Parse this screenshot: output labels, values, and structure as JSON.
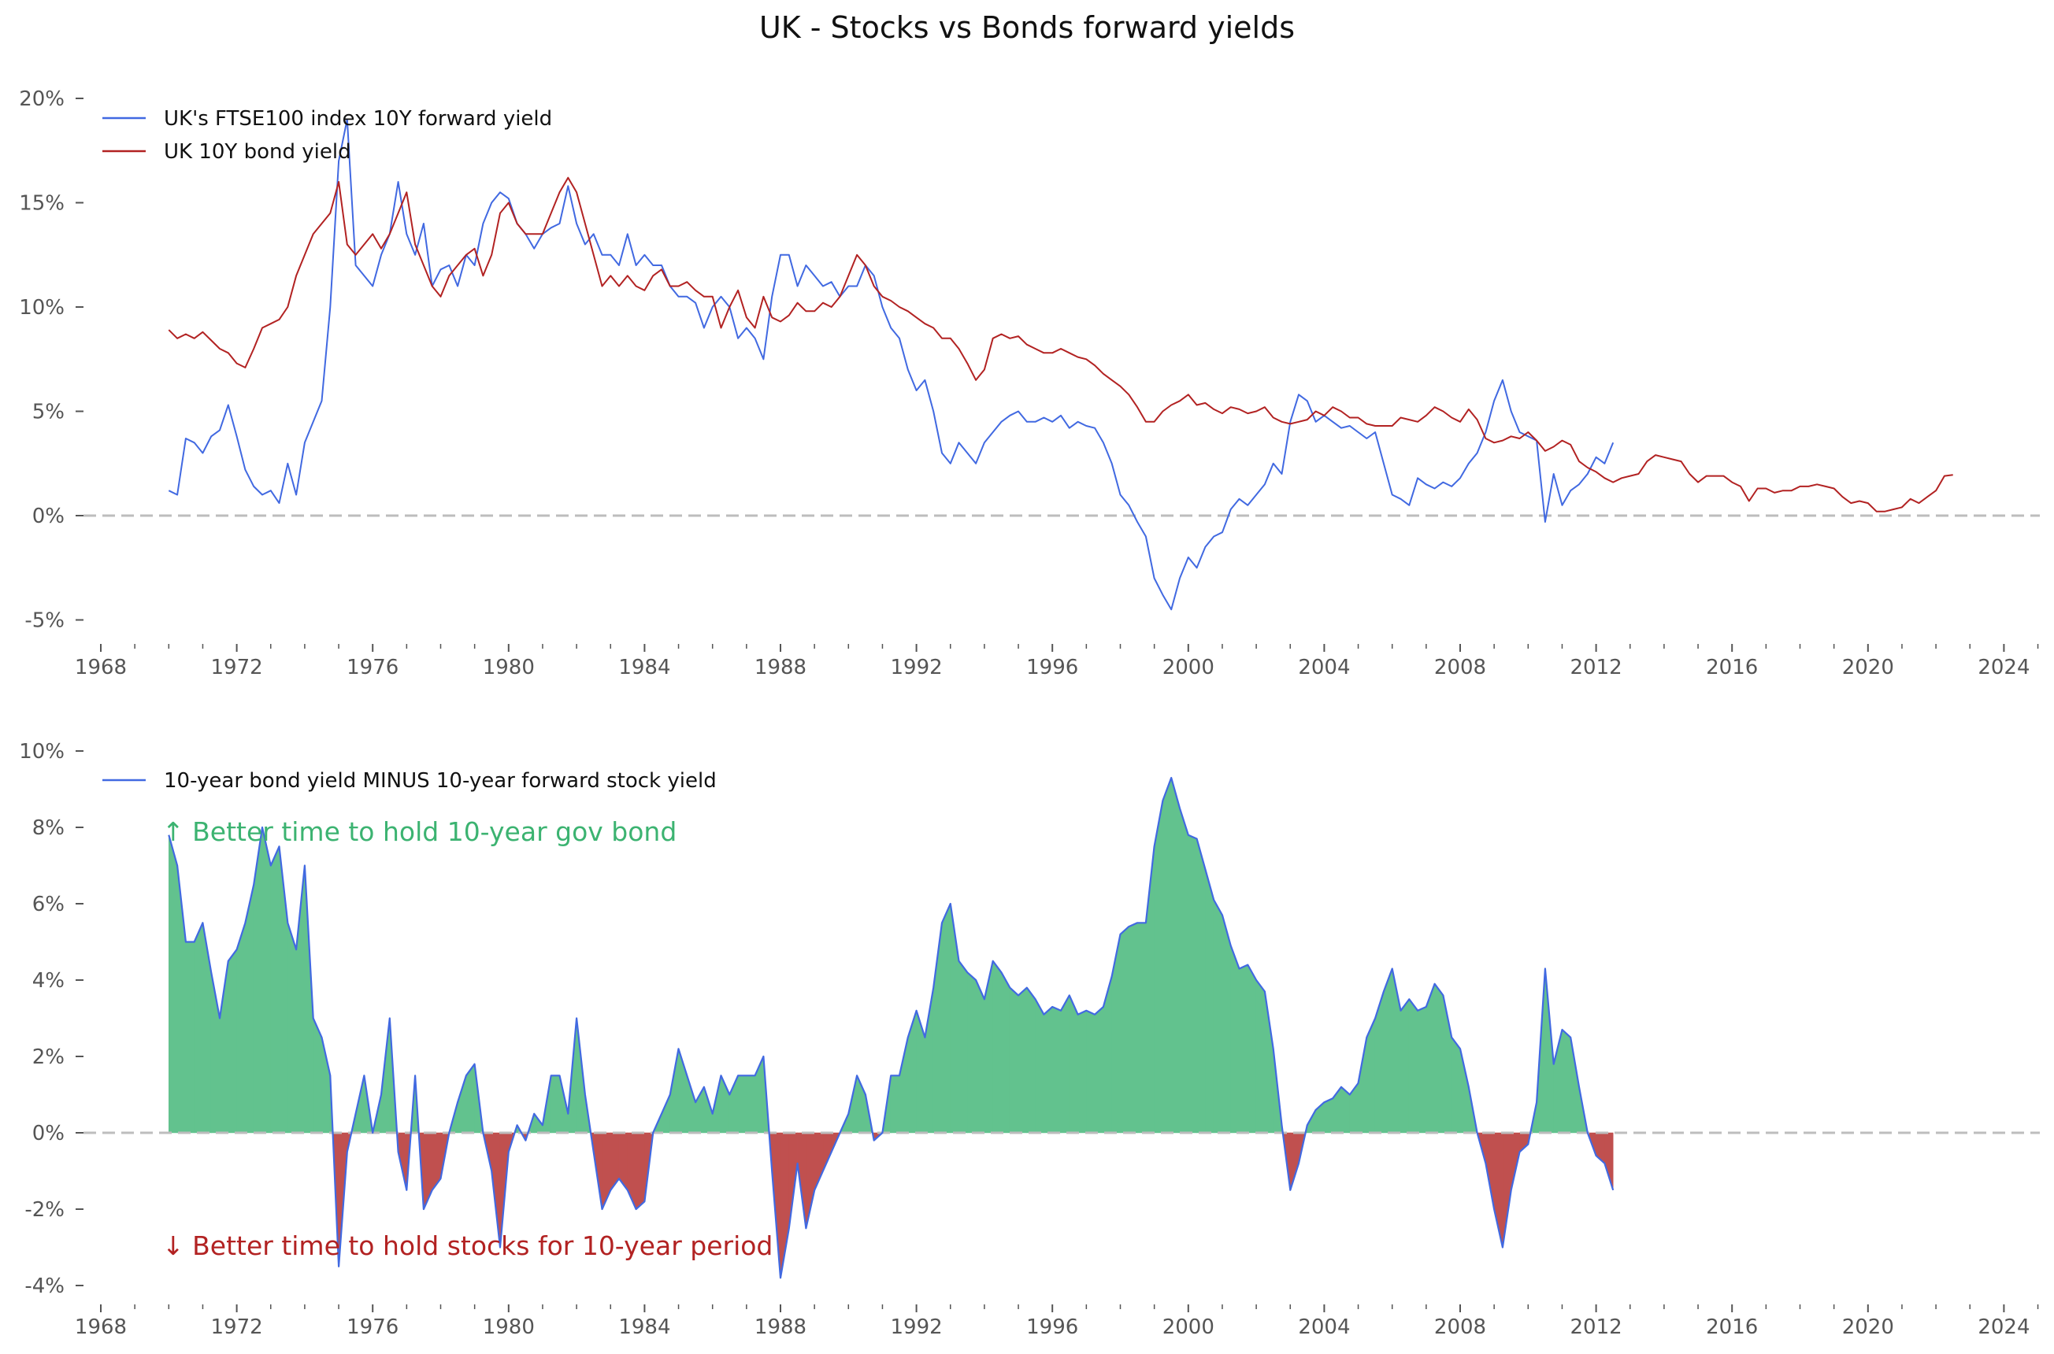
{
  "figure": {
    "title": "UK - Stocks vs Bonds forward yields"
  },
  "colors": {
    "stock_line": "#4169e1",
    "bond_line": "#b22222",
    "positive_fill": "#62c28e",
    "negative_fill": "#c0504f",
    "zero_line": "#bdbdbd",
    "annot_up": "#3cb371",
    "annot_down": "#b22222",
    "tick_text": "#555555"
  },
  "chart_data": [
    {
      "type": "line",
      "title": "UK - Stocks vs Bonds forward yields",
      "xlabel": "",
      "ylabel": "",
      "xlim": [
        1968,
        2025
      ],
      "ylim": [
        -6,
        20
      ],
      "x_ticks": [
        "1968",
        "1972",
        "1976",
        "1980",
        "1984",
        "1988",
        "1992",
        "1996",
        "2000",
        "2004",
        "2008",
        "2012",
        "2016",
        "2020",
        "2024"
      ],
      "x_minor_ticks": "yearly",
      "y_ticks": [
        20,
        15,
        10,
        5,
        0,
        -5
      ],
      "y_tick_labels": [
        "20%",
        "15%",
        "10%",
        "5%",
        "0%",
        "-5%"
      ],
      "grid": false,
      "reference_line": {
        "y": 0,
        "style": "dashed"
      },
      "legend": {
        "placement": "top-left",
        "entries": [
          "UK's FTSE100 index 10Y forward yield",
          "UK 10Y bond yield"
        ]
      },
      "series": [
        {
          "name": "UK's FTSE100 index 10Y forward yield",
          "color_key": "stock_line",
          "x_start": 1970.0,
          "x_step": 0.25,
          "values": [
            1.2,
            1.0,
            3.7,
            3.5,
            3.0,
            3.8,
            4.1,
            5.3,
            3.8,
            2.2,
            1.4,
            1.0,
            1.2,
            0.6,
            2.5,
            1.0,
            3.5,
            4.5,
            5.5,
            10.0,
            17.0,
            19.0,
            12.0,
            11.5,
            11.0,
            12.5,
            13.5,
            16.0,
            13.5,
            12.5,
            14.0,
            11.0,
            11.8,
            12.0,
            11.0,
            12.5,
            12.0,
            14.0,
            15.0,
            15.5,
            15.2,
            14.0,
            13.5,
            12.8,
            13.5,
            13.8,
            14.0,
            15.8,
            14.0,
            13.0,
            13.5,
            12.5,
            12.5,
            12.0,
            13.5,
            12.0,
            12.5,
            12.0,
            12.0,
            11.0,
            10.5,
            10.5,
            10.2,
            9.0,
            10.0,
            10.5,
            10.0,
            8.5,
            9.0,
            8.5,
            7.5,
            10.5,
            12.5,
            12.5,
            11.0,
            12.0,
            11.5,
            11.0,
            11.2,
            10.5,
            11.0,
            11.0,
            12.0,
            11.5,
            10.0,
            9.0,
            8.5,
            7.0,
            6.0,
            6.5,
            5.0,
            3.0,
            2.5,
            3.5,
            3.0,
            2.5,
            3.5,
            4.0,
            4.5,
            4.8,
            5.0,
            4.5,
            4.5,
            4.7,
            4.5,
            4.8,
            4.2,
            4.5,
            4.3,
            4.2,
            3.5,
            2.5,
            1.0,
            0.5,
            -0.3,
            -1.0,
            -3.0,
            -3.8,
            -4.5,
            -3.0,
            -2.0,
            -2.5,
            -1.5,
            -1.0,
            -0.8,
            0.3,
            0.8,
            0.5,
            1.0,
            1.5,
            2.5,
            2.0,
            4.5,
            5.8,
            5.5,
            4.5,
            4.8,
            4.5,
            4.2,
            4.3,
            4.0,
            3.7,
            4.0,
            2.5,
            1.0,
            0.8,
            0.5,
            1.8,
            1.5,
            1.3,
            1.6,
            1.4,
            1.8,
            2.5,
            3.0,
            4.0,
            5.5,
            6.5,
            5.0,
            4.0,
            3.8,
            3.6,
            -0.3,
            2.0,
            0.5,
            1.2,
            1.5,
            2.0,
            2.8,
            2.5,
            3.5
          ]
        },
        {
          "name": "UK 10Y bond yield",
          "color_key": "bond_line",
          "x_start": 1970.0,
          "x_step": 0.25,
          "values": [
            8.9,
            8.5,
            8.7,
            8.5,
            8.8,
            8.4,
            8.0,
            7.8,
            7.3,
            7.1,
            8.0,
            9.0,
            9.2,
            9.4,
            10.0,
            11.5,
            12.5,
            13.5,
            14.0,
            14.5,
            16.0,
            13.0,
            12.5,
            13.0,
            13.5,
            12.8,
            13.5,
            14.5,
            15.5,
            13.0,
            12.0,
            11.0,
            10.5,
            11.5,
            12.0,
            12.5,
            12.8,
            11.5,
            12.5,
            14.5,
            15.0,
            14.0,
            13.5,
            13.5,
            13.5,
            14.5,
            15.5,
            16.2,
            15.5,
            14.0,
            12.5,
            11.0,
            11.5,
            11.0,
            11.5,
            11.0,
            10.8,
            11.5,
            11.8,
            11.0,
            11.0,
            11.2,
            10.8,
            10.5,
            10.5,
            9.0,
            10.0,
            10.8,
            9.5,
            9.0,
            10.5,
            9.5,
            9.3,
            9.6,
            10.2,
            9.8,
            9.8,
            10.2,
            10.0,
            10.5,
            11.5,
            12.5,
            12.0,
            11.0,
            10.5,
            10.3,
            10.0,
            9.8,
            9.5,
            9.2,
            9.0,
            8.5,
            8.5,
            8.0,
            7.3,
            6.5,
            7.0,
            8.5,
            8.7,
            8.5,
            8.6,
            8.2,
            8.0,
            7.8,
            7.8,
            8.0,
            7.8,
            7.6,
            7.5,
            7.2,
            6.8,
            6.5,
            6.2,
            5.8,
            5.2,
            4.5,
            4.5,
            5.0,
            5.3,
            5.5,
            5.8,
            5.3,
            5.4,
            5.1,
            4.9,
            5.2,
            5.1,
            4.9,
            5.0,
            5.2,
            4.7,
            4.5,
            4.4,
            4.5,
            4.6,
            5.0,
            4.8,
            5.2,
            5.0,
            4.7,
            4.7,
            4.4,
            4.3,
            4.3,
            4.3,
            4.7,
            4.6,
            4.5,
            4.8,
            5.2,
            5.0,
            4.7,
            4.5,
            5.1,
            4.6,
            3.7,
            3.5,
            3.6,
            3.8,
            3.7,
            4.0,
            3.6,
            3.1,
            3.3,
            3.6,
            3.4,
            2.6,
            2.3,
            2.1,
            1.8,
            1.6,
            1.8,
            1.9,
            2.0,
            2.6,
            2.9,
            2.8,
            2.7,
            2.6,
            2.0,
            1.6,
            1.9,
            1.9,
            1.9,
            1.6,
            1.4,
            0.7,
            1.3,
            1.3,
            1.1,
            1.2,
            1.2,
            1.4,
            1.4,
            1.5,
            1.4,
            1.3,
            0.9,
            0.6,
            0.7,
            0.6,
            0.2,
            0.2,
            0.3,
            0.4,
            0.8,
            0.6,
            0.9,
            1.2,
            1.9,
            1.95
          ]
        }
      ]
    },
    {
      "type": "area",
      "title": "",
      "xlabel": "",
      "ylabel": "",
      "xlim": [
        1968,
        2025
      ],
      "ylim": [
        -4.5,
        10
      ],
      "x_ticks": [
        "1968",
        "1972",
        "1976",
        "1980",
        "1984",
        "1988",
        "1992",
        "1996",
        "2000",
        "2004",
        "2008",
        "2012",
        "2016",
        "2020",
        "2024"
      ],
      "x_minor_ticks": "yearly",
      "y_ticks": [
        10,
        8,
        6,
        4,
        2,
        0,
        -2,
        -4
      ],
      "y_tick_labels": [
        "10%",
        "8%",
        "6%",
        "4%",
        "2%",
        "0%",
        "-2%",
        "-4%"
      ],
      "grid": false,
      "reference_line": {
        "y": 0,
        "style": "dashed"
      },
      "legend": {
        "placement": "top-left",
        "entries": [
          "10-year bond yield MINUS 10-year forward stock yield"
        ]
      },
      "annotations": [
        {
          "text": "↑ Better time to hold 10-year gov bond",
          "color_key": "annot_up",
          "placement": "upper-left"
        },
        {
          "text": "↓ Better time to hold stocks for 10-year period",
          "color_key": "annot_down",
          "placement": "lower-left"
        }
      ],
      "fill": {
        "above_zero_color_key": "positive_fill",
        "below_zero_color_key": "negative_fill"
      },
      "series": [
        {
          "name": "10-year bond yield MINUS 10-year forward stock yield",
          "color_key": "stock_line",
          "x_start": 1970.0,
          "x_step": 0.25,
          "values": [
            7.8,
            7.0,
            5.0,
            5.0,
            5.5,
            4.2,
            3.0,
            4.5,
            4.8,
            5.5,
            6.5,
            8.0,
            7.0,
            7.5,
            5.5,
            4.8,
            7.0,
            3.0,
            2.5,
            1.5,
            -3.5,
            -0.5,
            0.5,
            1.5,
            0.0,
            1.0,
            3.0,
            -0.5,
            -1.5,
            1.5,
            -2.0,
            -1.5,
            -1.2,
            0.0,
            0.8,
            1.5,
            1.8,
            0.0,
            -1.0,
            -3.0,
            -0.5,
            0.2,
            -0.2,
            0.5,
            0.2,
            1.5,
            1.5,
            0.5,
            3.0,
            1.0,
            -0.5,
            -2.0,
            -1.5,
            -1.2,
            -1.5,
            -2.0,
            -1.8,
            0.0,
            0.5,
            1.0,
            2.2,
            1.5,
            0.8,
            1.2,
            0.5,
            1.5,
            1.0,
            1.5,
            1.5,
            1.5,
            2.0,
            -1.0,
            -3.8,
            -2.5,
            -0.8,
            -2.5,
            -1.5,
            -1.0,
            -0.5,
            0.0,
            0.5,
            1.5,
            1.0,
            -0.2,
            0.0,
            1.5,
            1.5,
            2.5,
            3.2,
            2.5,
            3.8,
            5.5,
            6.0,
            4.5,
            4.2,
            4.0,
            3.5,
            4.5,
            4.2,
            3.8,
            3.6,
            3.8,
            3.5,
            3.1,
            3.3,
            3.2,
            3.6,
            3.1,
            3.2,
            3.1,
            3.3,
            4.1,
            5.2,
            5.4,
            5.5,
            5.5,
            7.5,
            8.7,
            9.3,
            8.5,
            7.8,
            7.7,
            6.9,
            6.1,
            5.7,
            4.9,
            4.3,
            4.4,
            4.0,
            3.7,
            2.2,
            0.2,
            -1.5,
            -0.8,
            0.2,
            0.6,
            0.8,
            0.9,
            1.2,
            1.0,
            1.3,
            2.5,
            3.0,
            3.7,
            4.3,
            3.2,
            3.5,
            3.2,
            3.3,
            3.9,
            3.6,
            2.5,
            2.2,
            1.2,
            0.0,
            -0.8,
            -2.0,
            -3.0,
            -1.5,
            -0.5,
            -0.3,
            0.8,
            4.3,
            1.8,
            2.7,
            2.5,
            1.2,
            0.0,
            -0.6,
            -0.8,
            -1.5
          ]
        }
      ]
    }
  ]
}
